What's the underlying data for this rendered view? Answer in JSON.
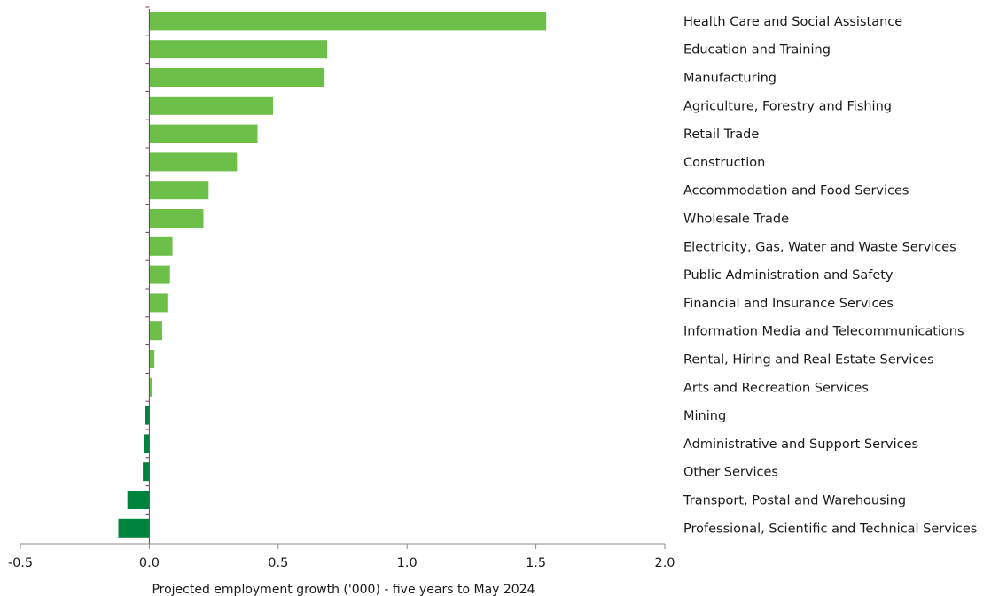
{
  "chart_data": {
    "type": "bar",
    "orientation": "horizontal",
    "categories": [
      "Health Care and Social Assistance",
      "Education and Training",
      "Manufacturing",
      "Agriculture, Forestry and Fishing",
      "Retail Trade",
      "Construction",
      "Accommodation and Food Services",
      "Wholesale Trade",
      "Electricity, Gas, Water and Waste Services",
      "Public Administration and Safety",
      "Financial and Insurance Services",
      "Information Media and Telecommunications",
      "Rental, Hiring and Real Estate Services",
      "Arts and Recreation Services",
      "Mining",
      "Administrative and Support Services",
      "Other Services",
      "Transport, Postal and Warehousing",
      "Professional, Scientific and Technical Services"
    ],
    "values": [
      1.54,
      0.69,
      0.68,
      0.48,
      0.42,
      0.34,
      0.23,
      0.21,
      0.09,
      0.08,
      0.07,
      0.05,
      0.02,
      0.01,
      -0.015,
      -0.02,
      -0.025,
      -0.085,
      -0.12
    ],
    "xlabel": "Projected employment growth ('000) - five years to May 2024",
    "ylabel": "",
    "xlim": [
      -0.5,
      2.0
    ],
    "xticks": [
      "-0.5",
      "0.0",
      "0.5",
      "1.0",
      "1.5",
      "2.0"
    ],
    "xtick_values": [
      -0.5,
      0.0,
      0.5,
      1.0,
      1.5,
      2.0
    ],
    "grid": false,
    "legend": "none",
    "colors": {
      "positive": "#6cc04a",
      "negative": "#00843d",
      "zero_line": "#6d3b63",
      "axis": "#8a8a8a",
      "text": "#1a1a1a"
    }
  }
}
